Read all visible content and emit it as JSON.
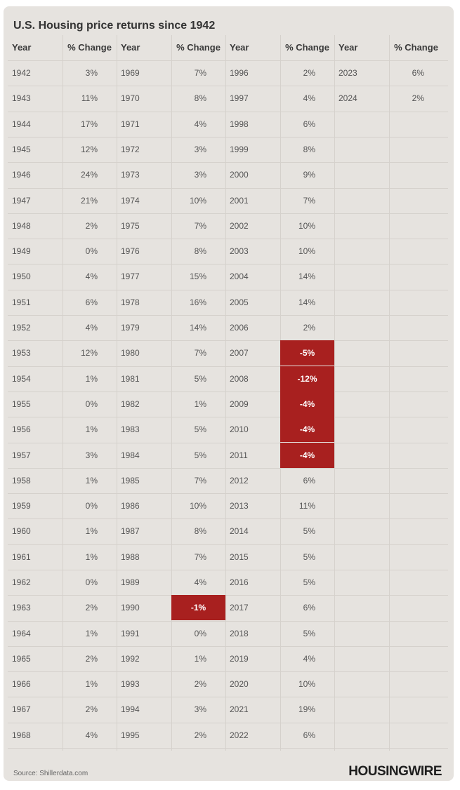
{
  "title": "U.S. Housing price returns since 1942",
  "source": "Source: Shillerdata.com",
  "brand": "HOUSINGWIRE",
  "colors": {
    "background": "#e6e3df",
    "negative": "#a8201f",
    "text": "#555555"
  },
  "chart_data": {
    "type": "table",
    "title": "U.S. Housing price returns since 1942",
    "columns": [
      "Year",
      "% Change",
      "Year",
      "% Change",
      "Year",
      "% Change",
      "Year",
      "% Change"
    ],
    "groups": [
      {
        "rows": [
          {
            "year": "1942",
            "change": "3%"
          },
          {
            "year": "1943",
            "change": "11%"
          },
          {
            "year": "1944",
            "change": "17%"
          },
          {
            "year": "1945",
            "change": "12%"
          },
          {
            "year": "1946",
            "change": "24%"
          },
          {
            "year": "1947",
            "change": "21%"
          },
          {
            "year": "1948",
            "change": "2%"
          },
          {
            "year": "1949",
            "change": "0%"
          },
          {
            "year": "1950",
            "change": "4%"
          },
          {
            "year": "1951",
            "change": "6%"
          },
          {
            "year": "1952",
            "change": "4%"
          },
          {
            "year": "1953",
            "change": "12%"
          },
          {
            "year": "1954",
            "change": "1%"
          },
          {
            "year": "1955",
            "change": "0%"
          },
          {
            "year": "1956",
            "change": "1%"
          },
          {
            "year": "1957",
            "change": "3%"
          },
          {
            "year": "1958",
            "change": "1%"
          },
          {
            "year": "1959",
            "change": "0%"
          },
          {
            "year": "1960",
            "change": "1%"
          },
          {
            "year": "1961",
            "change": "1%"
          },
          {
            "year": "1962",
            "change": "0%"
          },
          {
            "year": "1963",
            "change": "2%"
          },
          {
            "year": "1964",
            "change": "1%"
          },
          {
            "year": "1965",
            "change": "2%"
          },
          {
            "year": "1966",
            "change": "1%"
          },
          {
            "year": "1967",
            "change": "2%"
          },
          {
            "year": "1968",
            "change": "4%"
          }
        ]
      },
      {
        "rows": [
          {
            "year": "1969",
            "change": "7%"
          },
          {
            "year": "1970",
            "change": "8%"
          },
          {
            "year": "1971",
            "change": "4%"
          },
          {
            "year": "1972",
            "change": "3%"
          },
          {
            "year": "1973",
            "change": "3%"
          },
          {
            "year": "1974",
            "change": "10%"
          },
          {
            "year": "1975",
            "change": "7%"
          },
          {
            "year": "1976",
            "change": "8%"
          },
          {
            "year": "1977",
            "change": "15%"
          },
          {
            "year": "1978",
            "change": "16%"
          },
          {
            "year": "1979",
            "change": "14%"
          },
          {
            "year": "1980",
            "change": "7%"
          },
          {
            "year": "1981",
            "change": "5%"
          },
          {
            "year": "1982",
            "change": "1%"
          },
          {
            "year": "1983",
            "change": "5%"
          },
          {
            "year": "1984",
            "change": "5%"
          },
          {
            "year": "1985",
            "change": "7%"
          },
          {
            "year": "1986",
            "change": "10%"
          },
          {
            "year": "1987",
            "change": "8%"
          },
          {
            "year": "1988",
            "change": "7%"
          },
          {
            "year": "1989",
            "change": "4%"
          },
          {
            "year": "1990",
            "change": "-1%"
          },
          {
            "year": "1991",
            "change": "0%"
          },
          {
            "year": "1992",
            "change": "1%"
          },
          {
            "year": "1993",
            "change": "2%"
          },
          {
            "year": "1994",
            "change": "3%"
          },
          {
            "year": "1995",
            "change": "2%"
          }
        ]
      },
      {
        "rows": [
          {
            "year": "1996",
            "change": "2%"
          },
          {
            "year": "1997",
            "change": "4%"
          },
          {
            "year": "1998",
            "change": "6%"
          },
          {
            "year": "1999",
            "change": "8%"
          },
          {
            "year": "2000",
            "change": "9%"
          },
          {
            "year": "2001",
            "change": "7%"
          },
          {
            "year": "2002",
            "change": "10%"
          },
          {
            "year": "2003",
            "change": "10%"
          },
          {
            "year": "2004",
            "change": "14%"
          },
          {
            "year": "2005",
            "change": "14%"
          },
          {
            "year": "2006",
            "change": "2%"
          },
          {
            "year": "2007",
            "change": "-5%"
          },
          {
            "year": "2008",
            "change": "-12%"
          },
          {
            "year": "2009",
            "change": "-4%"
          },
          {
            "year": "2010",
            "change": "-4%"
          },
          {
            "year": "2011",
            "change": "-4%"
          },
          {
            "year": "2012",
            "change": "6%"
          },
          {
            "year": "2013",
            "change": "11%"
          },
          {
            "year": "2014",
            "change": "5%"
          },
          {
            "year": "2015",
            "change": "5%"
          },
          {
            "year": "2016",
            "change": "5%"
          },
          {
            "year": "2017",
            "change": "6%"
          },
          {
            "year": "2018",
            "change": "5%"
          },
          {
            "year": "2019",
            "change": "4%"
          },
          {
            "year": "2020",
            "change": "10%"
          },
          {
            "year": "2021",
            "change": "19%"
          },
          {
            "year": "2022",
            "change": "6%"
          }
        ]
      },
      {
        "rows": [
          {
            "year": "2023",
            "change": "6%"
          },
          {
            "year": "2024",
            "change": "2%"
          }
        ]
      }
    ]
  }
}
